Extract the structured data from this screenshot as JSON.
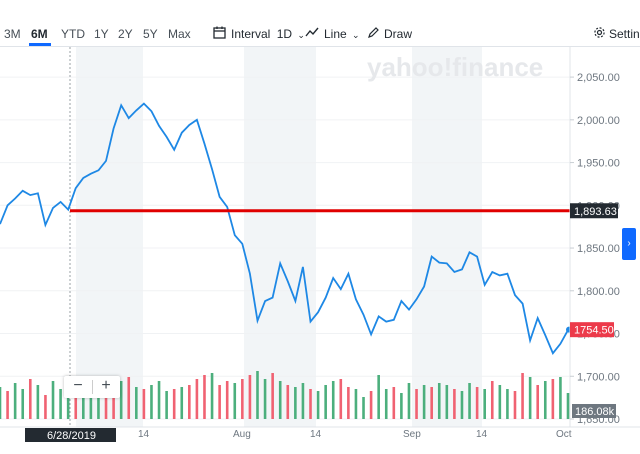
{
  "toolbar": {
    "ranges": [
      "3M",
      "6M",
      "YTD",
      "1Y",
      "2Y",
      "5Y",
      "Max"
    ],
    "active_range": "6M",
    "interval_label": "Interval",
    "interval_value": "1D",
    "line_label": "Line",
    "draw_label": "Draw",
    "settings_label": "Settings"
  },
  "watermark": "yahoo!finance",
  "price_axis": {
    "ticks": [
      "2,050.00",
      "2,000.00",
      "1,950.00",
      "1,900.00",
      "1,850.00",
      "1,800.00",
      "1,750.00",
      "1,700.00",
      "1,650.00"
    ],
    "ref_label": "1,893.63",
    "last_label": "1754.50",
    "volume_label": "186.08k"
  },
  "date_axis": {
    "labels": [
      "14",
      "Aug",
      "14",
      "Sep",
      "14",
      "Oct"
    ],
    "crosshair_date": "6/28/2019"
  },
  "zoom": {
    "minus": "−",
    "plus": "+"
  },
  "colors": {
    "line": "#1e88e5",
    "ref_line": "#e00000",
    "vol_up": "#4caf7d",
    "vol_down": "#f06272",
    "band": "#f2f5f7",
    "last_price_bg": "#ec3a4a",
    "toolbar_accent": "#0f69ff"
  },
  "chart_data": {
    "type": "line",
    "ylim": [
      1650,
      2070
    ],
    "ref_value": 1893.63,
    "last_value": 1754.5,
    "prices": [
      1878,
      1900,
      1908,
      1917,
      1912,
      1914,
      1877,
      1897,
      1904,
      1895,
      1920,
      1932,
      1937,
      1941,
      1952,
      1990,
      2017,
      2002,
      2011,
      2019,
      2010,
      1993,
      1980,
      1965,
      1985,
      1994,
      2000,
      1972,
      1942,
      1910,
      1898,
      1865,
      1855,
      1820,
      1765,
      1788,
      1792,
      1832,
      1811,
      1788,
      1828,
      1764,
      1775,
      1792,
      1815,
      1802,
      1820,
      1790,
      1772,
      1749,
      1770,
      1764,
      1766,
      1788,
      1778,
      1790,
      1805,
      1840,
      1833,
      1832,
      1822,
      1825,
      1845,
      1840,
      1807,
      1822,
      1818,
      1820,
      1795,
      1785,
      1742,
      1768,
      1748,
      1727,
      1738,
      1754
    ],
    "volume_up": [
      1,
      0,
      1,
      1,
      0,
      1,
      0,
      1,
      1,
      1,
      0,
      1,
      1,
      1,
      0,
      0,
      1,
      0,
      1,
      0,
      1,
      1,
      1,
      0,
      1,
      0,
      0,
      0,
      1,
      0,
      0,
      1,
      0,
      0,
      1,
      1,
      0,
      1,
      0,
      1,
      1,
      0,
      1,
      1,
      1,
      0,
      0,
      1,
      1,
      0,
      1,
      1,
      0,
      1,
      1,
      0,
      1,
      0,
      1,
      1,
      0,
      1,
      1,
      0,
      1,
      0,
      1,
      1,
      0,
      0,
      1,
      0,
      1,
      0,
      1,
      1
    ],
    "volume": [
      32,
      28,
      36,
      30,
      40,
      34,
      24,
      38,
      30,
      36,
      27,
      26,
      31,
      34,
      36,
      30,
      38,
      42,
      32,
      30,
      34,
      38,
      28,
      30,
      32,
      34,
      40,
      44,
      46,
      34,
      38,
      36,
      40,
      44,
      48,
      40,
      46,
      38,
      34,
      32,
      36,
      30,
      28,
      34,
      38,
      40,
      32,
      30,
      22,
      28,
      44,
      30,
      32,
      26,
      36,
      30,
      34,
      32,
      36,
      34,
      30,
      28,
      36,
      32,
      30,
      38,
      34,
      30,
      28,
      46,
      42,
      34,
      38,
      40,
      42,
      26
    ]
  }
}
